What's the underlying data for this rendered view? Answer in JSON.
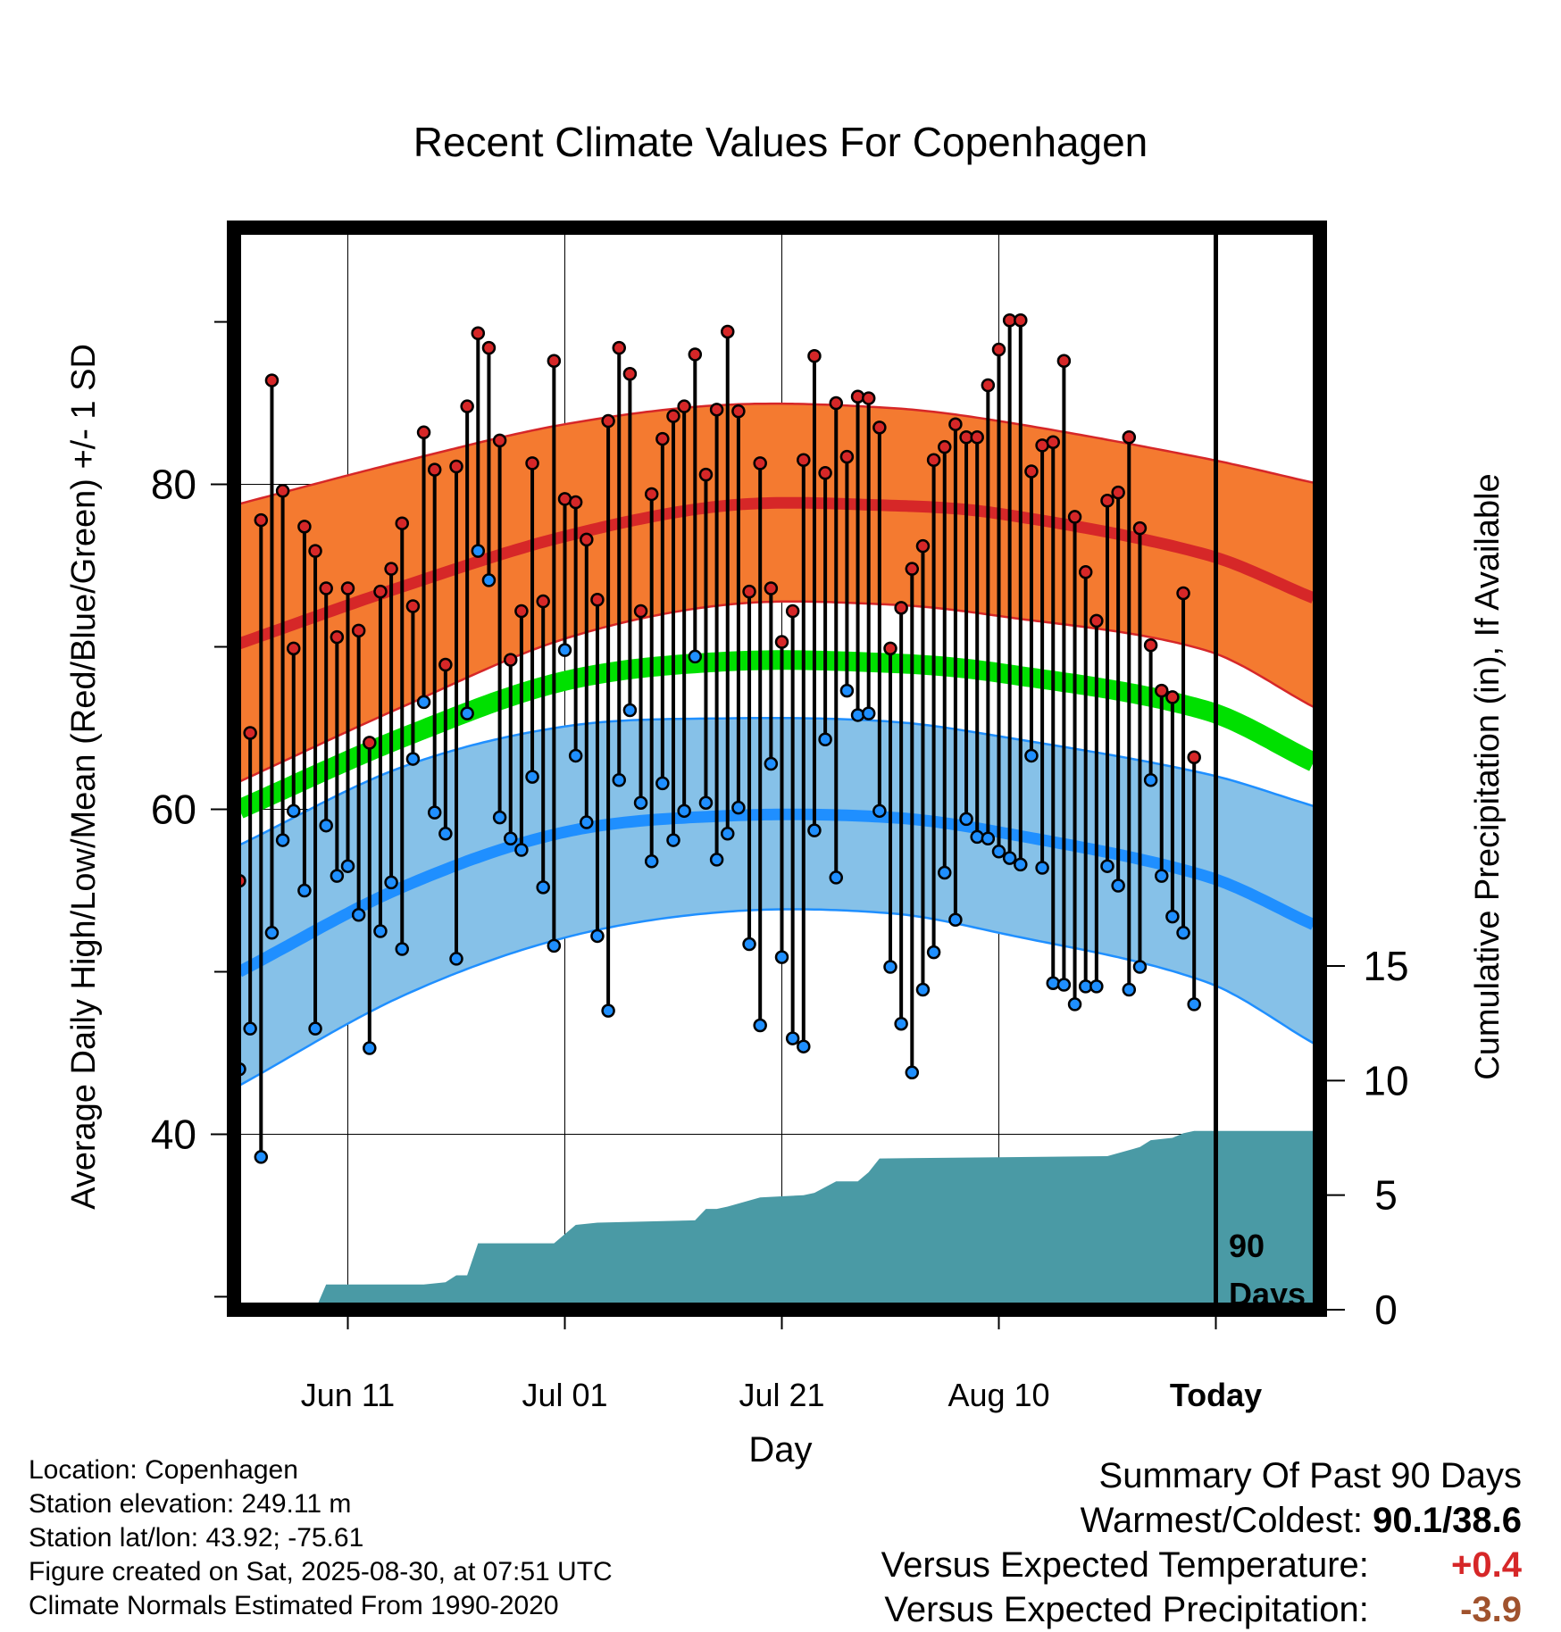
{
  "chart_data": {
    "type": "line",
    "title": "Recent Climate Values For Copenhagen",
    "xlabel": "Day",
    "ylabel_left": "Average Daily High/Low/Mean (Red/Blue/Green) +/- 1 SD",
    "ylabel_right": "Cumulative Precipitation (in), If Available",
    "x_ticks": [
      "Jun 11",
      "Jul 01",
      "Jul 21",
      "Aug 10",
      "Today"
    ],
    "y_left_ticks": [
      "40",
      "60",
      "80"
    ],
    "y_left_range": [
      29.2,
      95.8
    ],
    "y_right_ticks": [
      "0",
      "5",
      "10",
      "15"
    ],
    "y_right_range": [
      0,
      15
    ],
    "days_label": [
      "90",
      "Days"
    ],
    "daily_high": [
      55.6,
      64.7,
      77.8,
      86.4,
      79.6,
      69.9,
      77.4,
      75.9,
      73.6,
      70.6,
      73.6,
      71.0,
      64.1,
      73.4,
      74.8,
      77.6,
      72.5,
      83.2,
      80.9,
      68.9,
      81.1,
      84.8,
      89.3,
      88.4,
      82.7,
      69.2,
      72.2,
      81.3,
      72.8,
      87.6,
      79.1,
      78.9,
      76.6,
      72.9,
      83.9,
      88.4,
      86.8,
      72.2,
      79.4,
      82.8,
      84.2,
      84.8,
      88.0,
      80.6,
      84.6,
      89.4,
      84.5,
      73.4,
      81.3,
      73.6,
      70.3,
      72.2,
      81.5,
      87.9,
      80.7,
      85.0,
      81.7,
      85.4,
      85.3,
      83.5,
      69.9,
      72.4,
      74.8,
      76.2,
      81.5,
      82.3,
      83.7,
      82.9,
      82.9,
      86.1,
      88.3,
      90.1,
      90.1,
      80.8,
      82.4,
      82.6,
      87.6,
      78.0,
      74.6,
      71.6,
      79.0,
      79.5,
      82.9,
      77.3,
      70.1,
      67.3,
      66.9,
      73.3,
      63.2
    ],
    "daily_low": [
      44.0,
      46.5,
      38.6,
      52.4,
      58.1,
      59.9,
      55.0,
      46.5,
      59.0,
      55.9,
      56.5,
      53.5,
      45.3,
      52.5,
      55.5,
      51.4,
      63.1,
      66.6,
      59.8,
      58.5,
      50.8,
      65.9,
      75.9,
      74.1,
      59.5,
      58.2,
      57.5,
      62.0,
      55.2,
      51.6,
      69.8,
      63.3,
      59.2,
      52.2,
      47.6,
      61.8,
      66.1,
      60.4,
      56.8,
      61.6,
      58.1,
      59.9,
      69.4,
      60.4,
      56.9,
      58.5,
      60.1,
      51.7,
      46.7,
      62.8,
      50.9,
      45.9,
      45.4,
      58.7,
      64.3,
      55.8,
      67.3,
      65.8,
      65.9,
      59.9,
      50.3,
      46.8,
      43.8,
      48.9,
      51.2,
      56.1,
      53.2,
      59.4,
      58.3,
      58.2,
      57.4,
      57.0,
      56.6,
      63.3,
      56.4,
      49.3,
      49.2,
      48.0,
      49.1,
      49.1,
      56.5,
      55.3,
      48.9,
      50.3,
      61.8,
      55.9,
      53.4,
      52.4,
      48.0
    ],
    "normals": {
      "days": [
        0,
        15,
        30,
        45,
        60,
        70,
        89,
        99
      ],
      "high_mean": [
        70.2,
        73.7,
        76.8,
        78.7,
        78.7,
        78.2,
        75.7,
        73.0
      ],
      "high_upper": [
        78.8,
        81.4,
        83.7,
        84.9,
        84.7,
        83.9,
        81.6,
        80.1
      ],
      "high_lower": [
        61.7,
        66.3,
        70.5,
        72.6,
        72.6,
        71.9,
        69.8,
        66.3
      ],
      "avg_mean": [
        60.0,
        64.4,
        67.9,
        69.1,
        69.0,
        68.4,
        66.1,
        62.9
      ],
      "low_mean": [
        50.0,
        55.2,
        58.6,
        59.6,
        59.5,
        58.6,
        55.9,
        52.9
      ],
      "low_upper": [
        57.8,
        62.6,
        65.1,
        65.6,
        65.4,
        64.5,
        62.2,
        60.2
      ],
      "low_lower": [
        43.0,
        48.5,
        52.1,
        53.7,
        53.6,
        52.4,
        49.4,
        45.6
      ]
    },
    "precip_cumulative": {
      "days": [
        0,
        7,
        8,
        17,
        19,
        20,
        21,
        22,
        29,
        31,
        33,
        42,
        43,
        44,
        45,
        48,
        52,
        53,
        55,
        57,
        58,
        59,
        80,
        83,
        84,
        86,
        87,
        88,
        89,
        99
      ],
      "values": [
        0,
        0,
        1.1,
        1.1,
        1.2,
        1.5,
        1.5,
        2.9,
        2.9,
        3.7,
        3.8,
        3.9,
        4.4,
        4.4,
        4.5,
        4.9,
        5.0,
        5.1,
        5.6,
        5.6,
        6.0,
        6.6,
        6.7,
        7.1,
        7.4,
        7.5,
        7.7,
        7.8,
        7.8,
        7.8
      ]
    }
  },
  "info": {
    "location": "Location: Copenhagen",
    "elevation": "Station elevation: 249.11 m",
    "latlon": "Station lat/lon: 43.92; -75.61",
    "created": "Figure created on Sat, 2025-08-30, at 07:51 UTC",
    "normals": "Climate Normals Estimated From 1990-2020"
  },
  "summary": {
    "title": "Summary Of Past 90 Days",
    "warmest_coldest_label": "Warmest/Coldest:",
    "warmest_coldest_value": "90.1/38.6",
    "temp_label": "Versus Expected Temperature:",
    "temp_value": "+0.4",
    "precip_label": "Versus Expected Precipitation:",
    "precip_value": "-3.9"
  },
  "colors": {
    "orange_band": "#f47a30",
    "red_line": "#d62728",
    "green_line": "#00e000",
    "blue_band": "#86c1e8",
    "blue_line": "#1f8fff",
    "precip": "#4a9aa5",
    "frame": "#000000"
  }
}
